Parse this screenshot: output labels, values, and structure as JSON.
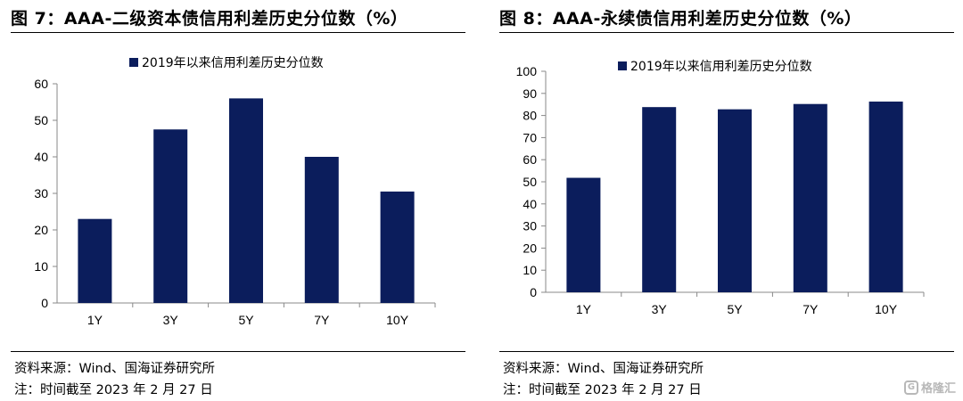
{
  "panels": [
    {
      "title": "图 7：AAA-二级资本债信用利差历史分位数（%）",
      "source": "资料来源：Wind、国海证券研究所",
      "note": "注：时间截至 2023 年 2 月 27 日"
    },
    {
      "title": "图 8：AAA-永续债信用利差历史分位数（%）",
      "source": "资料来源：Wind、国海证券研究所",
      "note": "注：时间截至 2023 年 2 月 27 日"
    }
  ],
  "chart_data": [
    {
      "type": "bar",
      "title": "",
      "categories": [
        "1Y",
        "3Y",
        "5Y",
        "7Y",
        "10Y"
      ],
      "series": [
        {
          "name": "2019年以来信用利差历史分位数",
          "values": [
            23,
            47.5,
            56,
            40,
            30.5
          ]
        }
      ],
      "ylim": [
        0,
        60
      ],
      "yticks": [
        0,
        10,
        20,
        30,
        40,
        50,
        60
      ],
      "grid": false,
      "legend": "top",
      "bar_color": "#0b1d5c"
    },
    {
      "type": "bar",
      "title": "",
      "categories": [
        "1Y",
        "3Y",
        "5Y",
        "7Y",
        "10Y"
      ],
      "series": [
        {
          "name": "2019年以来信用利差历史分位数",
          "values": [
            51.8,
            83.8,
            82.8,
            85.2,
            86.3
          ]
        }
      ],
      "ylim": [
        0,
        100
      ],
      "yticks": [
        0,
        10,
        20,
        30,
        40,
        50,
        60,
        70,
        80,
        90,
        100
      ],
      "grid": false,
      "legend": "top",
      "bar_color": "#0b1d5c"
    }
  ],
  "watermark": {
    "icon": "gelonghui-logo-icon",
    "text": "格隆汇"
  }
}
